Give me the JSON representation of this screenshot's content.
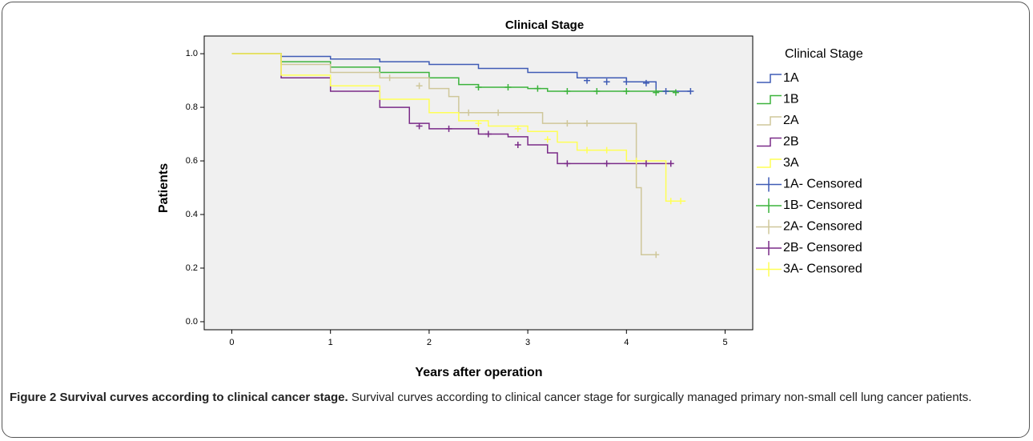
{
  "chart_data": {
    "type": "line",
    "title": "Clinical Stage",
    "x_label": "Years after operation",
    "y_label": "Patients",
    "legend_title": "Clinical Stage",
    "legend_position": "right",
    "xlim": [
      -0.28,
      5.28
    ],
    "xticks": [
      0,
      1,
      2,
      3,
      4,
      5
    ],
    "ylim": [
      -0.03,
      1.066
    ],
    "yticks": [
      {
        "value": 0,
        "label": "0.0"
      },
      {
        "value": 0.2,
        "label": "0.2"
      },
      {
        "value": 0.4,
        "label": "0.4"
      },
      {
        "value": 0.6,
        "label": "0.6"
      },
      {
        "value": 0.8,
        "label": "0.8"
      },
      {
        "value": 1,
        "label": "1.0"
      }
    ],
    "series": [
      {
        "name": "1A",
        "style": "step",
        "color": "#3f5bb5",
        "x": [
          0,
          0.5,
          1,
          1.5,
          2,
          2.5,
          3,
          3.5,
          4,
          4.3,
          4.65
        ],
        "values": [
          1,
          0.99,
          0.98,
          0.97,
          0.96,
          0.945,
          0.93,
          0.91,
          0.895,
          0.86,
          0.86
        ]
      },
      {
        "name": "1B",
        "style": "step",
        "color": "#3cb33c",
        "x": [
          0,
          0.5,
          1,
          1.5,
          2,
          2.3,
          2.5,
          3,
          3.2,
          4.5
        ],
        "values": [
          1,
          0.97,
          0.95,
          0.93,
          0.91,
          0.885,
          0.875,
          0.87,
          0.86,
          0.855
        ]
      },
      {
        "name": "2A",
        "style": "step",
        "color": "#cfc79a",
        "x": [
          0,
          0.5,
          1,
          1.5,
          2,
          2.2,
          2.3,
          3.1,
          3.15,
          4.05,
          4.1,
          4.15,
          4.3
        ],
        "values": [
          1,
          0.96,
          0.93,
          0.91,
          0.87,
          0.84,
          0.78,
          0.78,
          0.74,
          0.74,
          0.5,
          0.25,
          0.25
        ]
      },
      {
        "name": "2B",
        "style": "step",
        "color": "#7a2b88",
        "x": [
          0,
          0.5,
          1,
          1.5,
          1.8,
          2,
          2.5,
          2.8,
          3,
          3.2,
          3.3,
          4.45
        ],
        "values": [
          1,
          0.91,
          0.86,
          0.8,
          0.74,
          0.72,
          0.7,
          0.69,
          0.66,
          0.63,
          0.59,
          0.59
        ]
      },
      {
        "name": "3A",
        "style": "step",
        "color": "#ffff55",
        "x": [
          0,
          0.5,
          1,
          1.5,
          2,
          2.3,
          2.6,
          3,
          3.3,
          3.5,
          4,
          4.35,
          4.4,
          4.6
        ],
        "values": [
          1,
          0.92,
          0.88,
          0.83,
          0.78,
          0.75,
          0.73,
          0.71,
          0.67,
          0.64,
          0.6,
          0.6,
          0.45,
          0.45
        ]
      },
      {
        "name": "1A- Censored",
        "style": "censored",
        "color": "#3f5bb5",
        "x": [
          3.6,
          3.8,
          4.0,
          4.2,
          4.4,
          4.65
        ],
        "values": [
          0.9,
          0.895,
          0.895,
          0.89,
          0.86,
          0.86
        ]
      },
      {
        "name": "1B- Censored",
        "style": "censored",
        "color": "#3cb33c",
        "x": [
          2.5,
          2.8,
          3.1,
          3.4,
          3.7,
          4.0,
          4.3,
          4.5
        ],
        "values": [
          0.875,
          0.875,
          0.87,
          0.86,
          0.86,
          0.86,
          0.855,
          0.855
        ]
      },
      {
        "name": "2A- Censored",
        "style": "censored",
        "color": "#cfc79a",
        "x": [
          1.6,
          1.9,
          2.4,
          2.7,
          3.4,
          3.6,
          4.3
        ],
        "values": [
          0.91,
          0.88,
          0.78,
          0.78,
          0.74,
          0.74,
          0.25
        ]
      },
      {
        "name": "2B- Censored",
        "style": "censored",
        "color": "#7a2b88",
        "x": [
          1.9,
          2.2,
          2.6,
          2.9,
          3.4,
          3.8,
          4.2,
          4.45
        ],
        "values": [
          0.73,
          0.72,
          0.7,
          0.66,
          0.59,
          0.59,
          0.59,
          0.59
        ]
      },
      {
        "name": "3A- Censored",
        "style": "censored",
        "color": "#ffff55",
        "x": [
          2.5,
          2.9,
          3.2,
          3.6,
          3.8,
          4.1,
          4.45,
          4.55
        ],
        "values": [
          0.74,
          0.72,
          0.68,
          0.64,
          0.64,
          0.6,
          0.45,
          0.45
        ]
      }
    ]
  },
  "caption": {
    "label": "Figure 2 Survival curves according to clinical cancer stage.",
    "text": "Survival curves according to clinical cancer stage for surgically managed primary non-small cell lung cancer patients."
  }
}
